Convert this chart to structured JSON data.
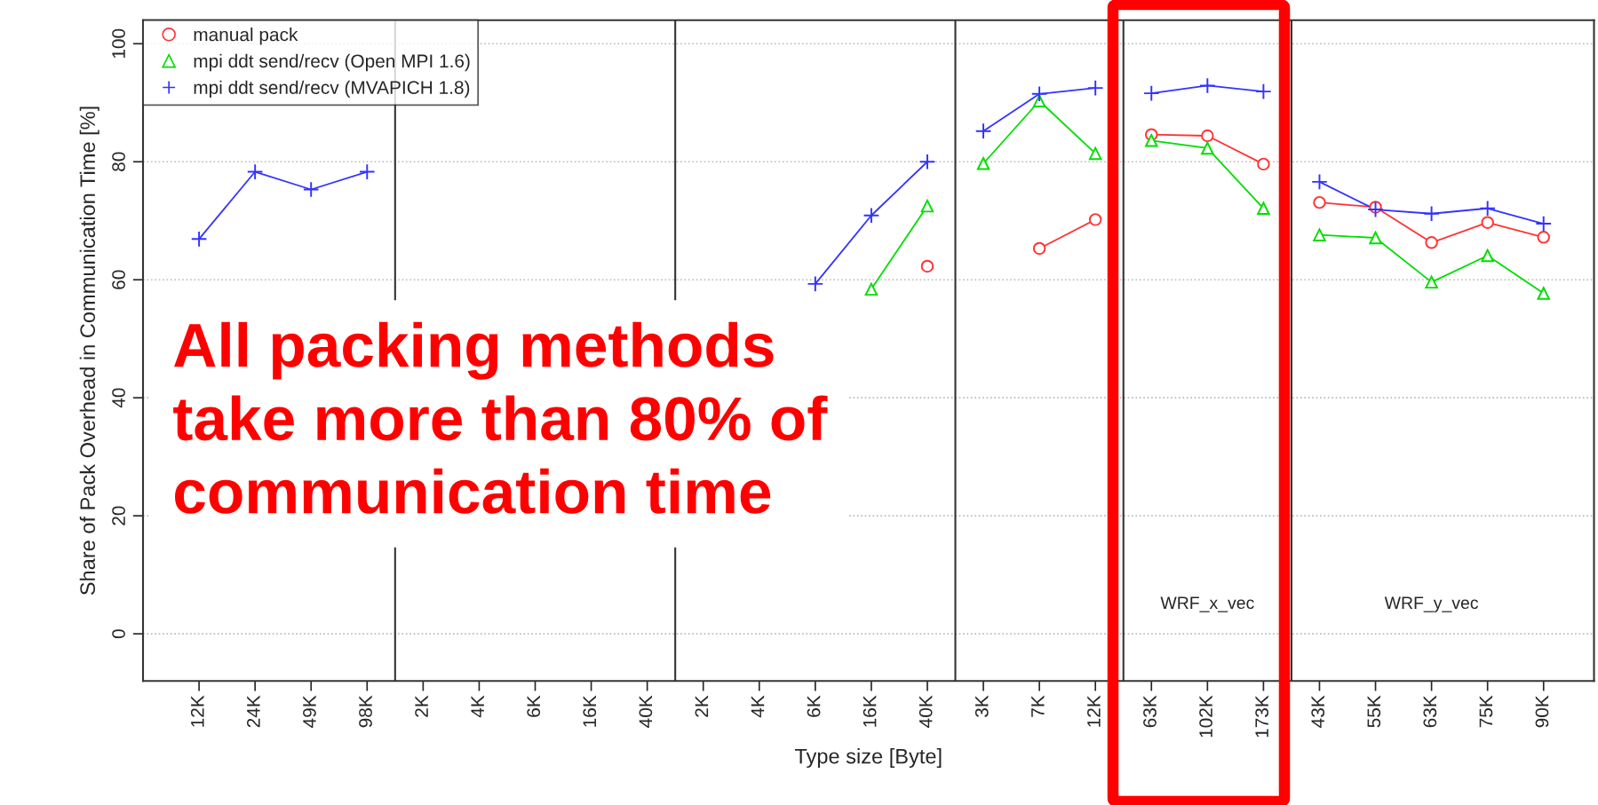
{
  "chart_data": {
    "type": "line",
    "ylabel": "Share of Pack Overhead in Communication Time [%]",
    "xlabel": "Type size [Byte]",
    "categories": [
      "12K",
      "24K",
      "49K",
      "98K",
      "2K",
      "4K",
      "6K",
      "16K",
      "40K",
      "2K",
      "4K",
      "6K",
      "16K",
      "40K",
      "3K",
      "7K",
      "12K",
      "63K",
      "102K",
      "173K",
      "43K",
      "55K",
      "63K",
      "75K",
      "90K"
    ],
    "series": [
      {
        "name": "manual pack",
        "color": "#ff3333",
        "marker": "circle",
        "values": [
          null,
          null,
          null,
          null,
          null,
          null,
          null,
          null,
          null,
          null,
          null,
          null,
          null,
          62.3,
          null,
          65.3,
          70.2,
          84.6,
          84.4,
          79.6,
          73.1,
          72.3,
          66.3,
          69.7,
          67.2
        ]
      },
      {
        "name": "mpi ddt send/recv (Open MPI 1.6)",
        "color": "#00dd00",
        "marker": "triangle",
        "values": [
          null,
          null,
          null,
          null,
          null,
          null,
          null,
          null,
          null,
          null,
          null,
          null,
          58.4,
          72.5,
          79.7,
          90.3,
          81.4,
          83.6,
          82.3,
          72.1,
          67.6,
          67.1,
          59.6,
          64.1,
          57.7
        ]
      },
      {
        "name": "mpi ddt send/recv (MVAPICH 1.8)",
        "color": "#3333ff",
        "marker": "cross",
        "values": [
          66.9,
          78.3,
          75.3,
          78.3,
          null,
          null,
          null,
          null,
          null,
          null,
          null,
          59.3,
          70.9,
          80.0,
          85.2,
          91.5,
          92.5,
          91.6,
          92.9,
          91.9,
          76.6,
          71.9,
          71.2,
          72.1,
          69.5
        ]
      }
    ],
    "ylim": [
      -8,
      104
    ],
    "yticks": [
      0,
      20,
      40,
      60,
      80,
      100
    ],
    "grid": "y",
    "legend": "top left",
    "annotations": [
      "WRF_x_vec",
      "WRF_y_vec",
      "All packing methods\ntake more than 80% of\ncommunication time"
    ]
  }
}
